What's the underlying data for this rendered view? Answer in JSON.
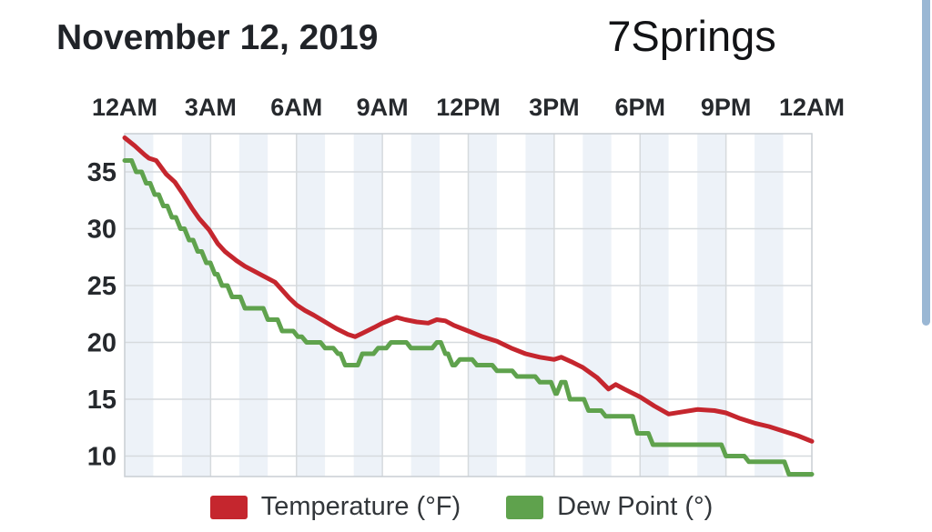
{
  "header": {
    "date_title": "November 12, 2019",
    "station_title": "7Springs"
  },
  "chart_data": {
    "type": "line",
    "title": "November 12, 2019 — 7Springs",
    "x_axis": {
      "position": "top",
      "range_hours": [
        0,
        24
      ],
      "tick_hours": [
        0,
        3,
        6,
        9,
        12,
        15,
        18,
        21,
        24
      ],
      "tick_labels": [
        "12AM",
        "3AM",
        "6AM",
        "9AM",
        "12PM",
        "3PM",
        "6PM",
        "9PM",
        "12AM"
      ]
    },
    "y_axis": {
      "ticks": [
        35,
        30,
        25,
        20,
        15,
        10
      ],
      "tick_labels": [
        "35",
        "30",
        "25",
        "20",
        "15",
        "10"
      ],
      "range": [
        8.2,
        38.4
      ],
      "grid": true
    },
    "background_stripes": {
      "interval_hours": 1,
      "even_hour_color": "#edf2f8",
      "odd_hour_color": "#ffffff"
    },
    "grid_color": "#d6dadd",
    "border_color": "#c9ced3",
    "tick_text_color": "#26292d",
    "series": [
      {
        "name": "Temperature (°F)",
        "color": "#c5262e",
        "step": false,
        "points": [
          [
            0,
            38.0
          ],
          [
            0.35,
            37.3
          ],
          [
            0.7,
            36.5
          ],
          [
            0.85,
            36.2
          ],
          [
            1.1,
            36.0
          ],
          [
            1.45,
            34.8
          ],
          [
            1.75,
            34.1
          ],
          [
            2.05,
            33.0
          ],
          [
            2.35,
            31.8
          ],
          [
            2.6,
            30.9
          ],
          [
            2.95,
            29.9
          ],
          [
            3.25,
            28.7
          ],
          [
            3.5,
            28.0
          ],
          [
            3.9,
            27.2
          ],
          [
            4.2,
            26.7
          ],
          [
            4.5,
            26.3
          ],
          [
            4.8,
            25.9
          ],
          [
            5.25,
            25.3
          ],
          [
            5.5,
            24.6
          ],
          [
            5.75,
            23.9
          ],
          [
            6.0,
            23.3
          ],
          [
            6.3,
            22.8
          ],
          [
            6.6,
            22.4
          ],
          [
            7.0,
            21.8
          ],
          [
            7.4,
            21.2
          ],
          [
            7.8,
            20.7
          ],
          [
            8.05,
            20.5
          ],
          [
            8.3,
            20.8
          ],
          [
            8.7,
            21.3
          ],
          [
            9.0,
            21.7
          ],
          [
            9.3,
            22.0
          ],
          [
            9.5,
            22.2
          ],
          [
            9.8,
            22.0
          ],
          [
            10.2,
            21.8
          ],
          [
            10.6,
            21.7
          ],
          [
            10.9,
            22.0
          ],
          [
            11.2,
            21.9
          ],
          [
            11.5,
            21.5
          ],
          [
            11.8,
            21.2
          ],
          [
            12.0,
            21.0
          ],
          [
            12.5,
            20.5
          ],
          [
            13.0,
            20.1
          ],
          [
            13.5,
            19.5
          ],
          [
            14.0,
            19.0
          ],
          [
            14.5,
            18.7
          ],
          [
            15.0,
            18.5
          ],
          [
            15.25,
            18.7
          ],
          [
            15.6,
            18.3
          ],
          [
            16.0,
            17.8
          ],
          [
            16.5,
            16.9
          ],
          [
            16.9,
            15.9
          ],
          [
            17.15,
            16.3
          ],
          [
            17.45,
            15.9
          ],
          [
            18.0,
            15.2
          ],
          [
            18.5,
            14.4
          ],
          [
            19.0,
            13.7
          ],
          [
            19.5,
            13.9
          ],
          [
            20.0,
            14.1
          ],
          [
            20.6,
            14.0
          ],
          [
            21.0,
            13.8
          ],
          [
            21.5,
            13.3
          ],
          [
            22.0,
            12.9
          ],
          [
            22.5,
            12.6
          ],
          [
            23.0,
            12.2
          ],
          [
            23.5,
            11.8
          ],
          [
            24.0,
            11.3
          ]
        ]
      },
      {
        "name": "Dew Point (°)",
        "color": "#5fa24d",
        "step": true,
        "points": [
          [
            0,
            36
          ],
          [
            0.3,
            35
          ],
          [
            0.65,
            34
          ],
          [
            0.95,
            33
          ],
          [
            1.25,
            32
          ],
          [
            1.55,
            31
          ],
          [
            1.85,
            30
          ],
          [
            2.15,
            29
          ],
          [
            2.45,
            28
          ],
          [
            2.75,
            27
          ],
          [
            3.05,
            26
          ],
          [
            3.3,
            25
          ],
          [
            3.65,
            24
          ],
          [
            4.1,
            23
          ],
          [
            4.9,
            22
          ],
          [
            5.4,
            21
          ],
          [
            5.95,
            20.5
          ],
          [
            6.25,
            20
          ],
          [
            6.9,
            19.5
          ],
          [
            7.35,
            19
          ],
          [
            7.6,
            18
          ],
          [
            8.2,
            19
          ],
          [
            8.75,
            19.5
          ],
          [
            9.2,
            20
          ],
          [
            9.9,
            19.5
          ],
          [
            10.8,
            20
          ],
          [
            11.1,
            19
          ],
          [
            11.35,
            18
          ],
          [
            11.6,
            18.5
          ],
          [
            12.2,
            18
          ],
          [
            12.9,
            17.5
          ],
          [
            13.6,
            17
          ],
          [
            14.4,
            16.5
          ],
          [
            14.95,
            15.5
          ],
          [
            15.15,
            16.5
          ],
          [
            15.45,
            15
          ],
          [
            16.1,
            14
          ],
          [
            16.7,
            13.5
          ],
          [
            17.8,
            12
          ],
          [
            18.35,
            11
          ],
          [
            20.9,
            10
          ],
          [
            21.7,
            9.5
          ],
          [
            23.1,
            8.4
          ]
        ]
      }
    ],
    "legend": {
      "position": "bottom",
      "items": [
        {
          "label": "Temperature (°F)",
          "color": "#c5262e"
        },
        {
          "label": "Dew Point (°)",
          "color": "#5fa24d"
        }
      ]
    }
  },
  "scrollbar": {
    "color": "#9ab7d4"
  }
}
